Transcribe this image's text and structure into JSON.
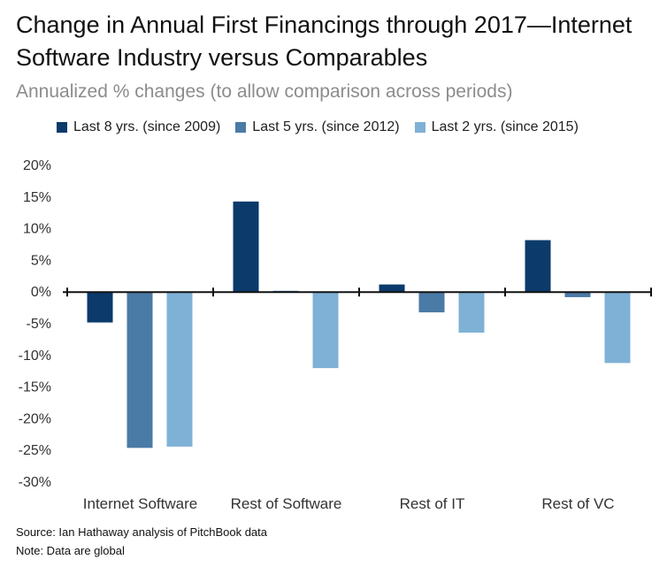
{
  "colors": {
    "series_2009": "#0b3a6b",
    "series_2012": "#4a7aa6",
    "series_2015": "#7fb1d6",
    "axis": "#111111"
  },
  "chart_data": {
    "type": "bar",
    "title": "Change in Annual First Financings through 2017—Internet Software Industry versus Comparables",
    "subtitle": "Annualized % changes (to allow comparison across periods)",
    "categories": [
      "Internet Software",
      "Rest of Software",
      "Rest of IT",
      "Rest of VC"
    ],
    "series": [
      {
        "name": "Last 8 yrs. (since 2009)",
        "values": [
          -4.8,
          14.3,
          1.2,
          8.2
        ]
      },
      {
        "name": "Last 5 yrs. (since 2012)",
        "values": [
          -24.6,
          0.2,
          -3.2,
          -0.8
        ]
      },
      {
        "name": "Last 2 yrs. (since 2015)",
        "values": [
          -24.4,
          -12.0,
          -6.4,
          -11.2
        ]
      }
    ],
    "yticks": [
      20,
      15,
      10,
      5,
      0,
      -5,
      -10,
      -15,
      -20,
      -25,
      -30
    ],
    "ytick_labels": [
      "20%",
      "15%",
      "10%",
      "5%",
      "0%",
      "-5%",
      "-10%",
      "-15%",
      "-20%",
      "-25%",
      "-30%"
    ],
    "ylim": [
      -30,
      20
    ],
    "xlabel": "",
    "ylabel": "",
    "legend_position": "top"
  },
  "footer": {
    "source": "Source: Ian Hathaway analysis of PitchBook data",
    "note": "Note: Data are global"
  }
}
